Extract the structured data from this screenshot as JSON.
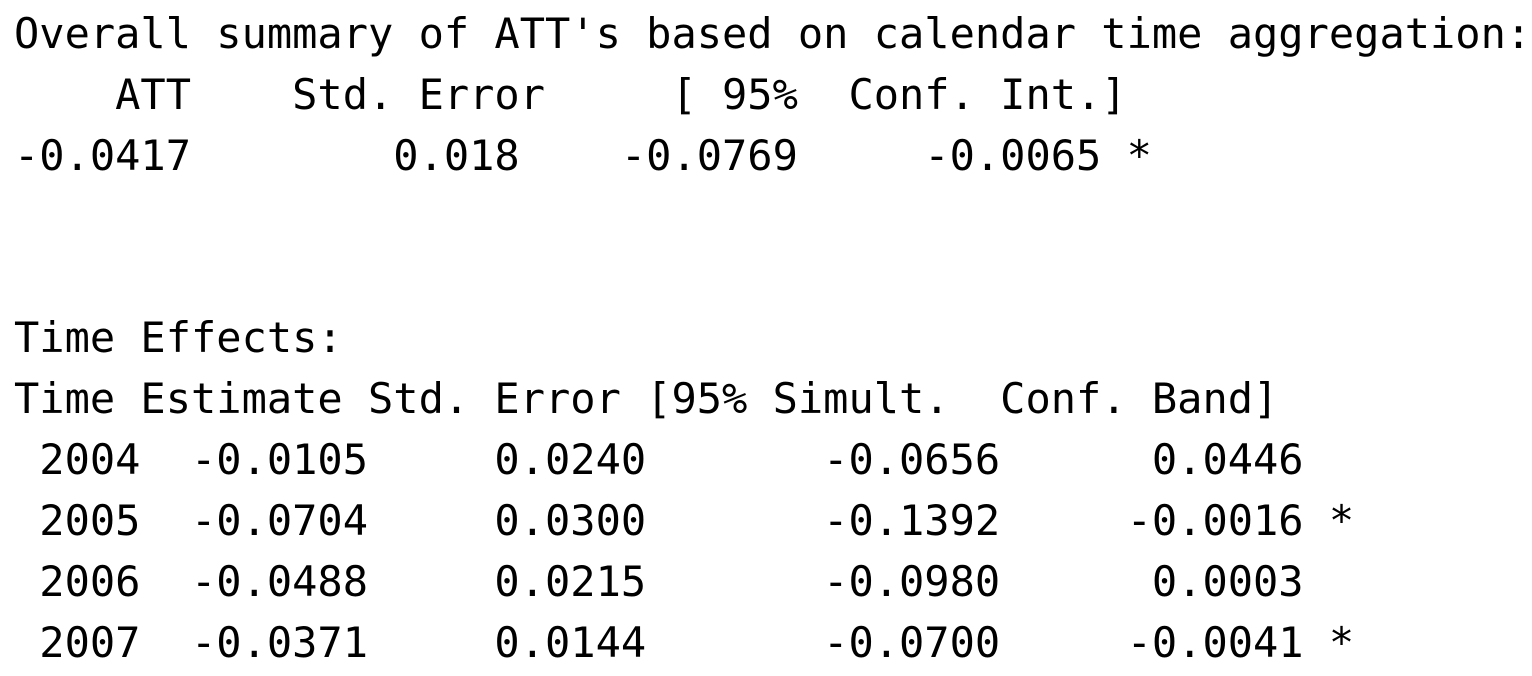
{
  "overall_summary": {
    "title": "Overall summary of ATT's based on calendar time aggregation:",
    "header": "    ATT    Std. Error     [ 95%  Conf. Int.]",
    "row": "-0.0417        0.018    -0.0769     -0.0065 *",
    "columns": [
      "ATT",
      "Std. Error",
      "[ 95%",
      "Conf. Int.]"
    ],
    "values": {
      "att": "-0.0417",
      "std_error": "0.018",
      "ci_lower": "-0.0769",
      "ci_upper": "-0.0065",
      "significance": "*"
    }
  },
  "time_effects": {
    "title": "Time Effects:",
    "header": "Time Estimate Std. Error [95% Simult.  Conf. Band]",
    "rows": [
      " 2004  -0.0105     0.0240       -0.0656      0.0446  ",
      " 2005  -0.0704     0.0300       -0.1392     -0.0016 *",
      " 2006  -0.0488     0.0215       -0.0980      0.0003  ",
      " 2007  -0.0371     0.0144       -0.0700     -0.0041 *"
    ],
    "columns": [
      "Time",
      "Estimate",
      "Std. Error",
      "[95% Simult.",
      "Conf. Band]"
    ],
    "table": [
      {
        "time": "2004",
        "estimate": "-0.0105",
        "std_error": "0.0240",
        "lower": "-0.0656",
        "upper": "0.0446",
        "significance": ""
      },
      {
        "time": "2005",
        "estimate": "-0.0704",
        "std_error": "0.0300",
        "lower": "-0.1392",
        "upper": "-0.0016",
        "significance": "*"
      },
      {
        "time": "2006",
        "estimate": "-0.0488",
        "std_error": "0.0215",
        "lower": "-0.0980",
        "upper": "0.0003",
        "significance": ""
      },
      {
        "time": "2007",
        "estimate": "-0.0371",
        "std_error": "0.0144",
        "lower": "-0.0700",
        "upper": "-0.0041",
        "significance": "*"
      }
    ]
  }
}
